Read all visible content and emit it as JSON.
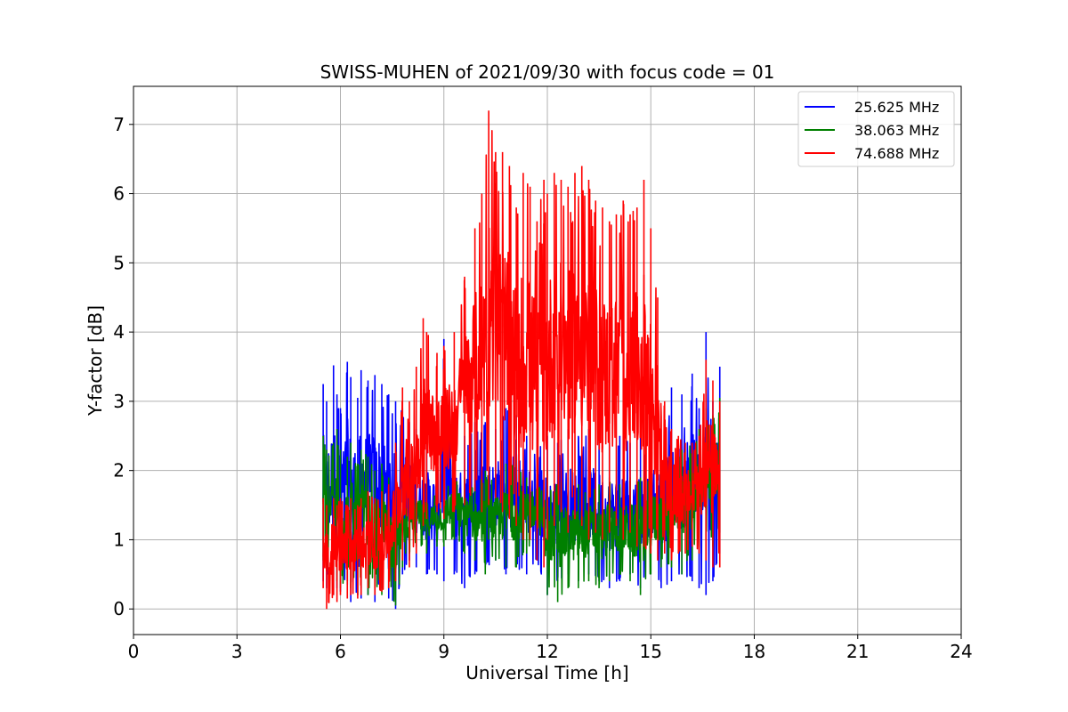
{
  "chart_data": {
    "type": "line",
    "title": "SWISS-MUHEN of 2021/09/30 with focus code = 01",
    "xlabel": "Universal Time [h]",
    "ylabel": "Y-factor [dB]",
    "xlim": [
      0,
      24
    ],
    "ylim": [
      -0.37,
      7.55
    ],
    "xticks": [
      0,
      3,
      6,
      9,
      12,
      15,
      18,
      21,
      24
    ],
    "yticks": [
      0,
      1,
      2,
      3,
      4,
      5,
      6,
      7
    ],
    "grid": true,
    "legend_position": "top-right",
    "series": [
      {
        "name": "25.625 MHz",
        "color": "#0000ff",
        "x": [
          5.5,
          5.6,
          5.8,
          5.9,
          6.0,
          6.2,
          6.3,
          6.5,
          6.6,
          6.8,
          7.0,
          7.2,
          7.4,
          7.6,
          7.8,
          8.0,
          8.2,
          8.5,
          8.8,
          9.0,
          9.3,
          9.6,
          9.9,
          10.2,
          10.5,
          10.8,
          11.1,
          11.4,
          11.7,
          12.0,
          12.3,
          12.6,
          12.9,
          13.2,
          13.5,
          13.8,
          14.1,
          14.4,
          14.7,
          15.0,
          15.3,
          15.6,
          15.9,
          16.2,
          16.4,
          16.6,
          16.8,
          17.0
        ],
        "max": [
          3.25,
          3.0,
          3.52,
          3.1,
          2.9,
          3.57,
          3.35,
          3.05,
          3.45,
          3.3,
          3.38,
          3.25,
          3.1,
          3.0,
          2.9,
          2.7,
          2.6,
          2.5,
          2.4,
          3.9,
          2.6,
          2.5,
          2.7,
          2.7,
          2.6,
          2.9,
          2.8,
          2.5,
          2.6,
          2.5,
          2.4,
          2.6,
          2.5,
          2.6,
          2.5,
          2.4,
          2.5,
          2.4,
          2.6,
          2.5,
          2.6,
          3.2,
          3.1,
          3.4,
          2.9,
          4.0,
          3.0,
          3.5
        ],
        "min": [
          0.4,
          0.3,
          0.2,
          0.3,
          0.25,
          0.35,
          0.1,
          0.2,
          0.15,
          0.2,
          0.1,
          0.3,
          0.15,
          0.0,
          0.5,
          0.7,
          0.6,
          0.5,
          0.5,
          0.4,
          0.5,
          0.3,
          0.5,
          0.6,
          0.7,
          0.5,
          0.6,
          0.5,
          0.7,
          0.2,
          0.4,
          0.5,
          0.4,
          0.5,
          0.4,
          0.3,
          0.4,
          0.5,
          0.3,
          0.5,
          0.3,
          0.4,
          0.5,
          0.4,
          0.3,
          0.2,
          0.4,
          0.8
        ],
        "mid": [
          2.2,
          2.1,
          2.3,
          2.2,
          2.1,
          2.2,
          2.0,
          2.1,
          2.2,
          2.1,
          2.2,
          2.0,
          1.9,
          1.5,
          1.3,
          1.1,
          1.0,
          0.9,
          0.9,
          0.9,
          1.0,
          0.8,
          0.9,
          0.9,
          1.0,
          0.9,
          0.9,
          0.8,
          1.0,
          0.6,
          0.8,
          0.8,
          0.8,
          0.8,
          0.8,
          0.8,
          0.8,
          0.8,
          0.8,
          0.8,
          0.8,
          0.9,
          0.9,
          0.9,
          0.8,
          0.8,
          0.8,
          1.2
        ]
      },
      {
        "name": "38.063 MHz",
        "color": "#008000",
        "x": [
          5.5,
          5.6,
          5.8,
          5.9,
          6.0,
          6.2,
          6.3,
          6.5,
          6.6,
          6.8,
          7.0,
          7.2,
          7.4,
          7.6,
          7.8,
          8.0,
          8.2,
          8.5,
          8.8,
          9.0,
          9.3,
          9.6,
          9.9,
          10.2,
          10.5,
          10.8,
          11.1,
          11.4,
          11.7,
          12.0,
          12.3,
          12.6,
          12.9,
          13.2,
          13.5,
          13.8,
          14.1,
          14.4,
          14.7,
          15.0,
          15.3,
          15.6,
          15.9,
          16.2,
          16.4,
          16.6,
          16.8,
          17.0
        ],
        "max": [
          2.5,
          2.3,
          2.4,
          2.6,
          2.3,
          2.2,
          2.4,
          2.1,
          2.3,
          2.2,
          2.0,
          2.1,
          1.9,
          1.8,
          1.8,
          1.9,
          1.8,
          1.8,
          1.7,
          1.8,
          2.0,
          1.9,
          1.8,
          2.0,
          1.9,
          2.1,
          2.2,
          1.9,
          2.2,
          2.0,
          1.8,
          1.9,
          1.8,
          1.9,
          1.8,
          1.9,
          1.8,
          1.9,
          1.9,
          2.0,
          2.1,
          2.2,
          2.3,
          2.4,
          2.6,
          2.9,
          2.8,
          3.05
        ],
        "min": [
          0.7,
          0.6,
          0.5,
          0.4,
          0.3,
          0.4,
          0.3,
          0.2,
          0.3,
          0.2,
          0.3,
          0.2,
          0.3,
          0.05,
          0.6,
          0.8,
          0.9,
          0.8,
          0.9,
          0.9,
          1.0,
          0.8,
          0.7,
          0.5,
          0.7,
          0.6,
          0.6,
          0.8,
          0.9,
          0.2,
          0.1,
          0.3,
          0.3,
          0.4,
          0.3,
          0.4,
          0.5,
          0.4,
          0.2,
          0.5,
          0.6,
          0.6,
          0.5,
          0.7,
          0.9,
          1.0,
          0.9,
          1.1
        ],
        "mid": [
          1.7,
          1.6,
          1.6,
          1.6,
          1.5,
          1.5,
          1.5,
          1.4,
          1.4,
          1.4,
          1.3,
          1.3,
          1.2,
          1.0,
          1.2,
          1.4,
          1.4,
          1.3,
          1.3,
          1.3,
          1.4,
          1.3,
          1.2,
          1.2,
          1.2,
          1.3,
          1.3,
          1.3,
          1.4,
          1.0,
          0.9,
          1.0,
          1.0,
          1.1,
          1.0,
          1.1,
          1.1,
          1.1,
          1.0,
          1.1,
          1.2,
          1.3,
          1.3,
          1.4,
          1.6,
          1.8,
          1.9,
          2.1
        ]
      },
      {
        "name": "74.688 MHz",
        "color": "#ff0000",
        "x": [
          5.5,
          5.6,
          5.8,
          5.9,
          6.0,
          6.2,
          6.3,
          6.5,
          6.6,
          6.8,
          7.0,
          7.2,
          7.4,
          7.6,
          7.8,
          8.0,
          8.2,
          8.4,
          8.5,
          8.8,
          9.0,
          9.3,
          9.6,
          9.9,
          10.1,
          10.3,
          10.5,
          10.7,
          10.9,
          11.1,
          11.3,
          11.5,
          11.7,
          11.9,
          12.0,
          12.2,
          12.4,
          12.6,
          12.8,
          13.0,
          13.2,
          13.4,
          13.6,
          13.8,
          14.0,
          14.2,
          14.4,
          14.6,
          14.8,
          15.0,
          15.2,
          15.4,
          15.6,
          15.8,
          16.0,
          16.2,
          16.4,
          16.6,
          16.8,
          17.0
        ],
        "max": [
          1.6,
          1.5,
          1.6,
          1.5,
          1.6,
          1.5,
          1.6,
          1.5,
          1.6,
          1.7,
          1.6,
          1.7,
          1.8,
          2.4,
          3.2,
          3.0,
          3.5,
          4.2,
          4.0,
          3.7,
          3.8,
          4.0,
          4.8,
          5.5,
          6.0,
          7.2,
          6.6,
          6.6,
          6.4,
          5.8,
          6.3,
          6.1,
          5.6,
          6.2,
          6.0,
          6.3,
          6.2,
          6.1,
          6.3,
          6.4,
          6.2,
          5.9,
          5.8,
          5.6,
          5.7,
          5.9,
          5.7,
          5.8,
          6.2,
          5.5,
          4.5,
          3.0,
          2.6,
          2.5,
          2.4,
          2.4,
          2.5,
          3.6,
          3.3,
          3.0
        ],
        "min": [
          0.3,
          0.0,
          0.2,
          0.1,
          0.2,
          0.15,
          0.2,
          0.15,
          0.2,
          0.3,
          0.2,
          0.25,
          0.3,
          0.4,
          0.7,
          0.6,
          0.8,
          1.2,
          1.3,
          1.4,
          1.3,
          1.4,
          1.5,
          1.7,
          1.4,
          1.5,
          1.6,
          1.4,
          1.3,
          1.2,
          1.0,
          1.0,
          0.7,
          0.6,
          1.0,
          1.2,
          1.4,
          1.1,
          1.3,
          1.2,
          1.0,
          1.1,
          1.0,
          1.1,
          1.2,
          1.0,
          1.1,
          0.9,
          0.9,
          0.8,
          0.7,
          0.8,
          0.7,
          0.8,
          0.8,
          0.9,
          0.8,
          0.7,
          0.6,
          0.6
        ],
        "mid": [
          0.9,
          0.8,
          0.9,
          0.8,
          0.9,
          0.9,
          0.9,
          0.9,
          1.0,
          1.0,
          1.0,
          1.0,
          1.1,
          1.3,
          1.8,
          1.7,
          2.0,
          2.5,
          2.4,
          2.3,
          2.3,
          2.5,
          3.0,
          3.5,
          3.6,
          4.0,
          4.1,
          3.8,
          3.6,
          3.2,
          3.3,
          3.2,
          2.8,
          3.0,
          3.2,
          3.6,
          3.7,
          3.5,
          3.7,
          3.7,
          3.5,
          3.4,
          3.3,
          3.3,
          3.4,
          3.4,
          3.3,
          3.2,
          3.3,
          3.0,
          2.5,
          1.8,
          1.6,
          1.6,
          1.6,
          1.6,
          1.6,
          1.8,
          1.6,
          1.5
        ]
      }
    ]
  }
}
